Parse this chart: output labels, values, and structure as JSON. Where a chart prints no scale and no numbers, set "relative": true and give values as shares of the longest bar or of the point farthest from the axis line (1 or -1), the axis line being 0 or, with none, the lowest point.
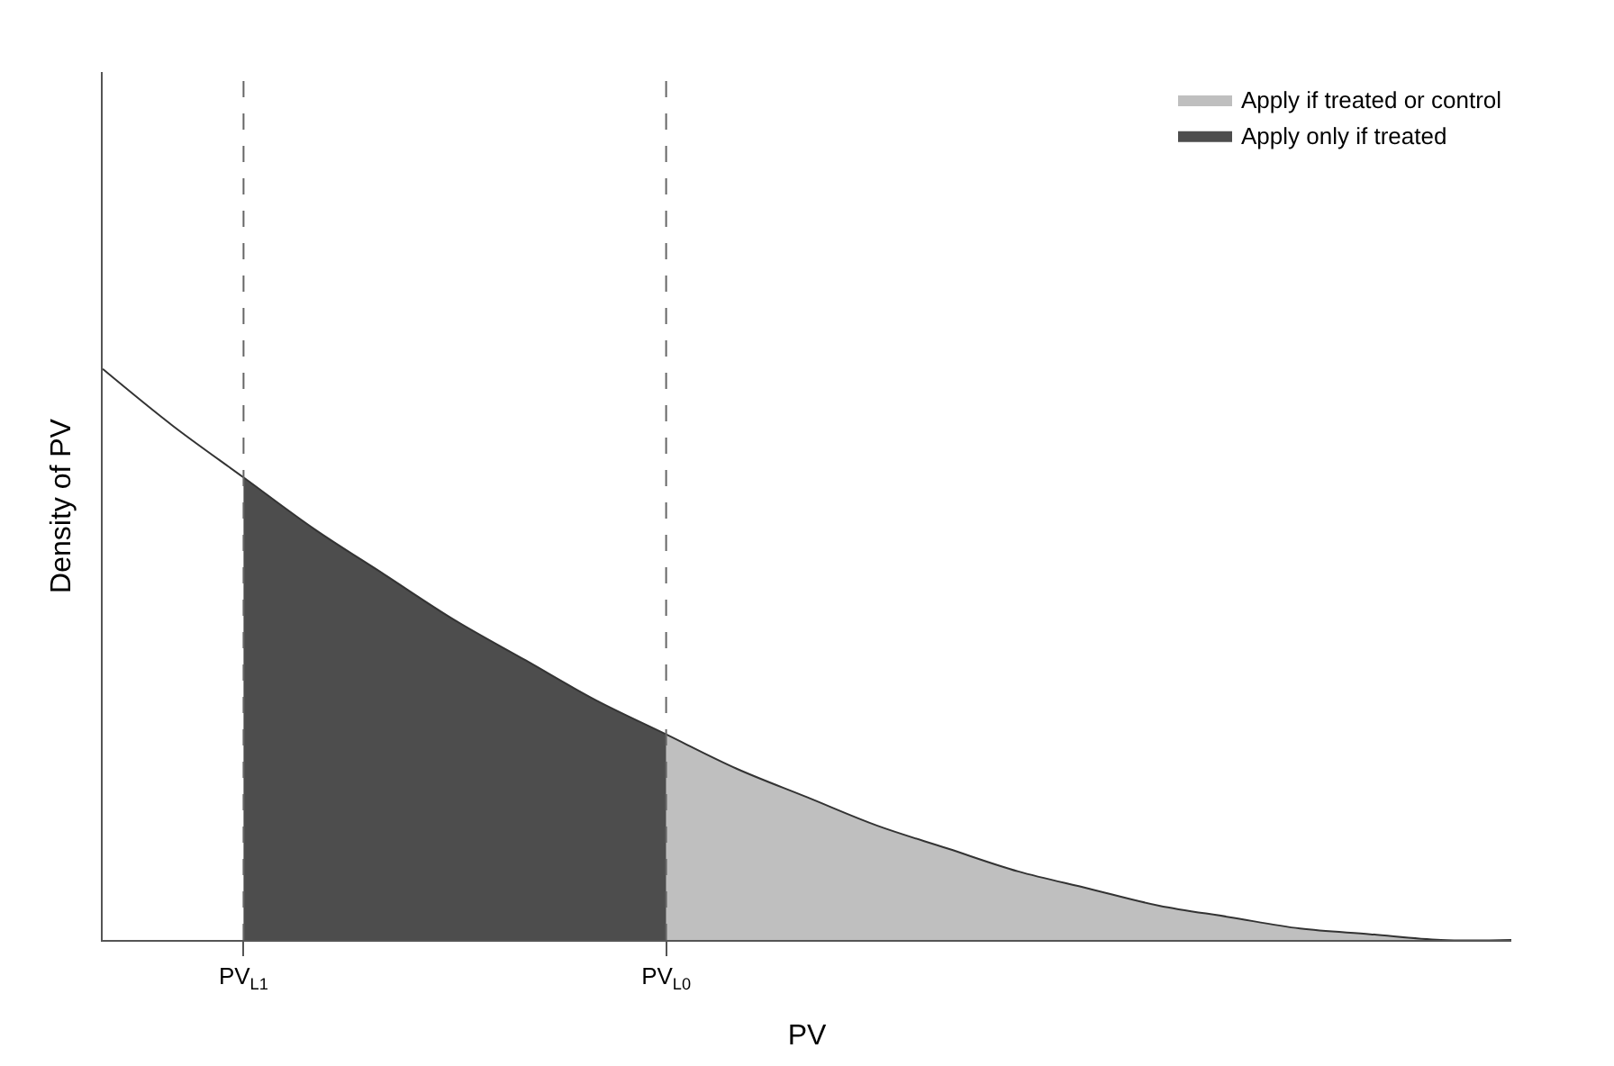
{
  "chart_data": {
    "type": "area",
    "relative": true,
    "xlabel": "PV",
    "ylabel": "Density of PV",
    "categories": [
      null,
      null,
      "PV$_{L1}$",
      null,
      null,
      null,
      null,
      null,
      "PV$_{L0}$",
      null,
      null,
      null,
      null,
      null,
      null,
      null,
      null,
      null,
      null,
      null,
      null
    ],
    "series": [
      {
        "name": "Apply if treated or control",
        "color": "#bfbfbf",
        "values": [
          null,
          null,
          null,
          null,
          null,
          null,
          null,
          null,
          0.36,
          0.3,
          0.25,
          0.2,
          0.16,
          0.12,
          0.09,
          0.06,
          0.04,
          0.02,
          0.01,
          0,
          0
        ]
      },
      {
        "name": "Apply only if treated",
        "color": "#4d4d4d",
        "values": [
          null,
          null,
          0.81,
          0.72,
          0.64,
          0.56,
          0.49,
          0.42,
          0.36,
          null,
          null,
          null,
          null,
          null,
          null,
          null,
          null,
          null,
          null,
          null,
          null
        ]
      },
      {
        "type": "line",
        "color": "#333333",
        "values": [
          1,
          0.9,
          0.81,
          0.72,
          0.64,
          0.56,
          0.49,
          0.42,
          0.36,
          0.3,
          0.25,
          0.2,
          0.16,
          0.12,
          0.09,
          0.06,
          0.04,
          0.02,
          0.01,
          0,
          0
        ]
      }
    ],
    "ref_lines": [
      {
        "axis": "x",
        "value": "PV$_{L1}$",
        "line_style": "dashed",
        "color": "#666666"
      },
      {
        "axis": "x",
        "value": "PV$_{L0}$",
        "line_style": "dashed",
        "color": "#666666"
      }
    ],
    "legend": "top right",
    "grid": false
  }
}
